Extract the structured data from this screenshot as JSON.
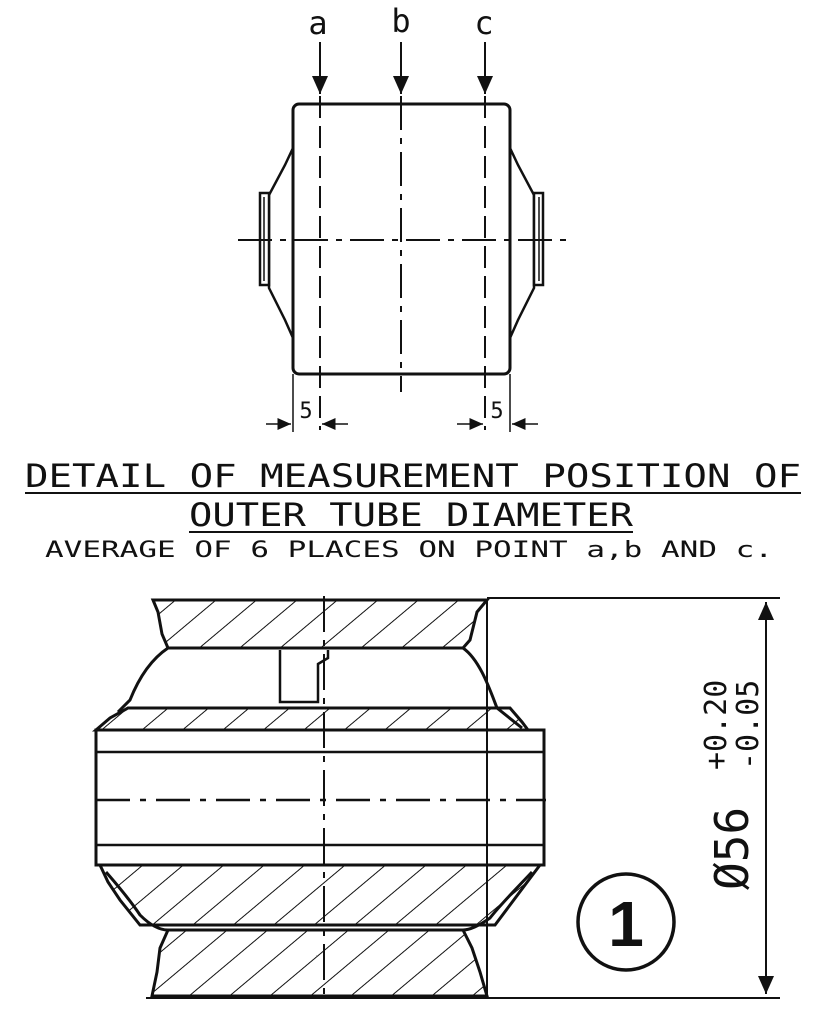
{
  "labels": {
    "a": "a",
    "b": "b",
    "c": "c",
    "dim_left": "5",
    "dim_right": "5"
  },
  "heading": {
    "line1": "DETAIL OF MEASUREMENT POSITION OF",
    "line2": "OUTER TUBE DIAMETER",
    "note": "AVERAGE OF 6 PLACES ON POINT a,b AND c."
  },
  "section": {
    "diameter_base": "Ø56",
    "tol_upper": "+0.20",
    "tol_lower": "-0.05",
    "callout": "1"
  }
}
